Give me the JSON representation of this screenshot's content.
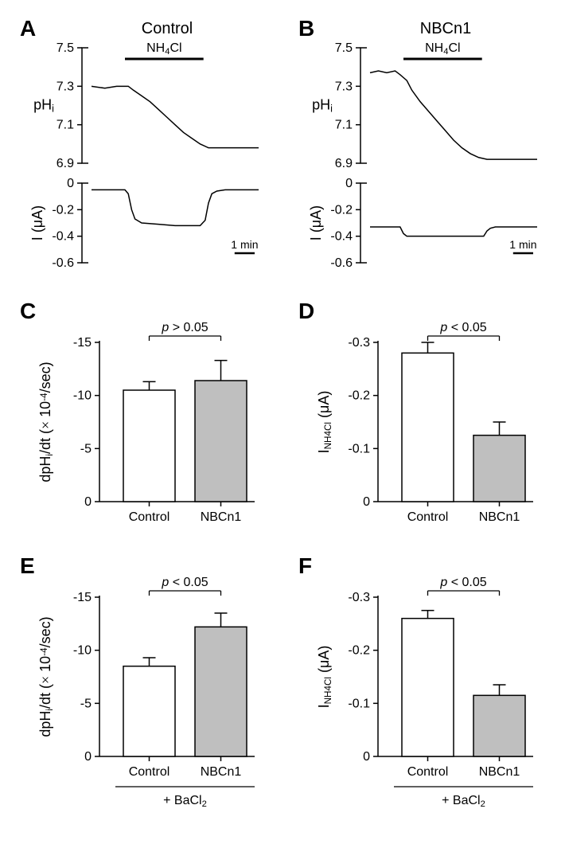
{
  "figure": {
    "panels": {
      "A": {
        "label": "A",
        "title": "Control",
        "stimulus": "NH₄Cl",
        "ph": {
          "ylabel": "pHᵢ",
          "yticks": [
            6.9,
            7.1,
            7.3,
            7.5
          ],
          "trace_color": "#000000",
          "data": [
            [
              0,
              7.3
            ],
            [
              8,
              7.29
            ],
            [
              15,
              7.3
            ],
            [
              20,
              7.3
            ],
            [
              22,
              7.3
            ],
            [
              25,
              7.28
            ],
            [
              30,
              7.25
            ],
            [
              35,
              7.22
            ],
            [
              40,
              7.18
            ],
            [
              45,
              7.14
            ],
            [
              50,
              7.1
            ],
            [
              55,
              7.06
            ],
            [
              60,
              7.03
            ],
            [
              65,
              7.0
            ],
            [
              70,
              6.98
            ],
            [
              75,
              6.98
            ],
            [
              80,
              6.98
            ],
            [
              85,
              6.98
            ],
            [
              90,
              6.98
            ],
            [
              95,
              6.98
            ],
            [
              100,
              6.98
            ]
          ]
        },
        "current": {
          "ylabel": "I (μA)",
          "yticks": [
            -0.6,
            -0.4,
            -0.2,
            0
          ],
          "trace_color": "#000000",
          "data": [
            [
              0,
              -0.05
            ],
            [
              15,
              -0.05
            ],
            [
              20,
              -0.05
            ],
            [
              22,
              -0.08
            ],
            [
              24,
              -0.2
            ],
            [
              26,
              -0.27
            ],
            [
              30,
              -0.3
            ],
            [
              40,
              -0.31
            ],
            [
              50,
              -0.32
            ],
            [
              60,
              -0.32
            ],
            [
              65,
              -0.32
            ],
            [
              68,
              -0.28
            ],
            [
              70,
              -0.15
            ],
            [
              72,
              -0.08
            ],
            [
              75,
              -0.06
            ],
            [
              80,
              -0.05
            ],
            [
              90,
              -0.05
            ],
            [
              100,
              -0.05
            ]
          ]
        },
        "scalebar": "1 min"
      },
      "B": {
        "label": "B",
        "title": "NBCn1",
        "stimulus": "NH₄Cl",
        "ph": {
          "ylabel": "pHᵢ",
          "yticks": [
            6.9,
            7.1,
            7.3,
            7.5
          ],
          "trace_color": "#000000",
          "data": [
            [
              0,
              7.37
            ],
            [
              5,
              7.38
            ],
            [
              10,
              7.37
            ],
            [
              15,
              7.38
            ],
            [
              18,
              7.36
            ],
            [
              22,
              7.33
            ],
            [
              25,
              7.28
            ],
            [
              30,
              7.22
            ],
            [
              35,
              7.17
            ],
            [
              40,
              7.12
            ],
            [
              45,
              7.07
            ],
            [
              50,
              7.02
            ],
            [
              55,
              6.98
            ],
            [
              60,
              6.95
            ],
            [
              65,
              6.93
            ],
            [
              70,
              6.92
            ],
            [
              75,
              6.92
            ],
            [
              80,
              6.92
            ],
            [
              85,
              6.92
            ],
            [
              90,
              6.92
            ],
            [
              100,
              6.92
            ]
          ]
        },
        "current": {
          "ylabel": "I (μA)",
          "yticks": [
            -0.6,
            -0.4,
            -0.2,
            0
          ],
          "trace_color": "#000000",
          "data": [
            [
              0,
              -0.33
            ],
            [
              15,
              -0.33
            ],
            [
              18,
              -0.33
            ],
            [
              20,
              -0.38
            ],
            [
              22,
              -0.4
            ],
            [
              30,
              -0.4
            ],
            [
              40,
              -0.4
            ],
            [
              50,
              -0.4
            ],
            [
              60,
              -0.4
            ],
            [
              68,
              -0.4
            ],
            [
              70,
              -0.36
            ],
            [
              72,
              -0.34
            ],
            [
              75,
              -0.33
            ],
            [
              80,
              -0.33
            ],
            [
              100,
              -0.33
            ]
          ]
        },
        "scalebar": "1 min"
      },
      "C": {
        "label": "C",
        "type": "bar",
        "pvalue": "p > 0.05",
        "ylabel_prefix": "dpHᵢ/dt (",
        "ylabel_mid": "× 10⁻⁴",
        "ylabel_suffix": "/sec)",
        "yticks": [
          0,
          -5,
          -10,
          -15
        ],
        "ymin": 0,
        "ymax": -15,
        "categories": [
          "Control",
          "NBCn1"
        ],
        "values": [
          -10.5,
          -11.4
        ],
        "errors": [
          0.8,
          1.9
        ],
        "bar_colors": [
          "#ffffff",
          "#bfbfbf"
        ],
        "bar_stroke": "#000000"
      },
      "D": {
        "label": "D",
        "type": "bar",
        "pvalue": "p < 0.05",
        "ylabel": "I_NH4Cl (μA)",
        "yticks": [
          0,
          -0.1,
          -0.2,
          -0.3
        ],
        "ymin": 0,
        "ymax": -0.3,
        "categories": [
          "Control",
          "NBCn1"
        ],
        "values": [
          -0.28,
          -0.125
        ],
        "errors": [
          0.02,
          0.025
        ],
        "bar_colors": [
          "#ffffff",
          "#bfbfbf"
        ],
        "bar_stroke": "#000000"
      },
      "E": {
        "label": "E",
        "type": "bar",
        "pvalue": "p < 0.05",
        "ylabel_prefix": "dpHᵢ/dt (",
        "ylabel_mid": "× 10⁻⁴",
        "ylabel_suffix": "/sec)",
        "yticks": [
          0,
          -5,
          -10,
          -15
        ],
        "ymin": 0,
        "ymax": -15,
        "categories": [
          "Control",
          "NBCn1"
        ],
        "values": [
          -8.5,
          -12.2
        ],
        "errors": [
          0.8,
          1.3
        ],
        "bar_colors": [
          "#ffffff",
          "#bfbfbf"
        ],
        "bar_stroke": "#000000",
        "footer": "+ BaCl₂"
      },
      "F": {
        "label": "F",
        "type": "bar",
        "pvalue": "p < 0.05",
        "ylabel": "I_NH4Cl (μA)",
        "yticks": [
          0,
          -0.1,
          -0.2,
          -0.3
        ],
        "ymin": 0,
        "ymax": -0.3,
        "categories": [
          "Control",
          "NBCn1"
        ],
        "values": [
          -0.26,
          -0.115
        ],
        "errors": [
          0.015,
          0.02
        ],
        "bar_colors": [
          "#ffffff",
          "#bfbfbf"
        ],
        "bar_stroke": "#000000",
        "footer": "+ BaCl₂"
      }
    },
    "styling": {
      "axis_color": "#000000",
      "axis_width": 1.5,
      "tick_length": 6,
      "font_size_label": 18,
      "font_size_tick": 16,
      "font_size_title": 20,
      "font_size_panel": 28
    }
  }
}
